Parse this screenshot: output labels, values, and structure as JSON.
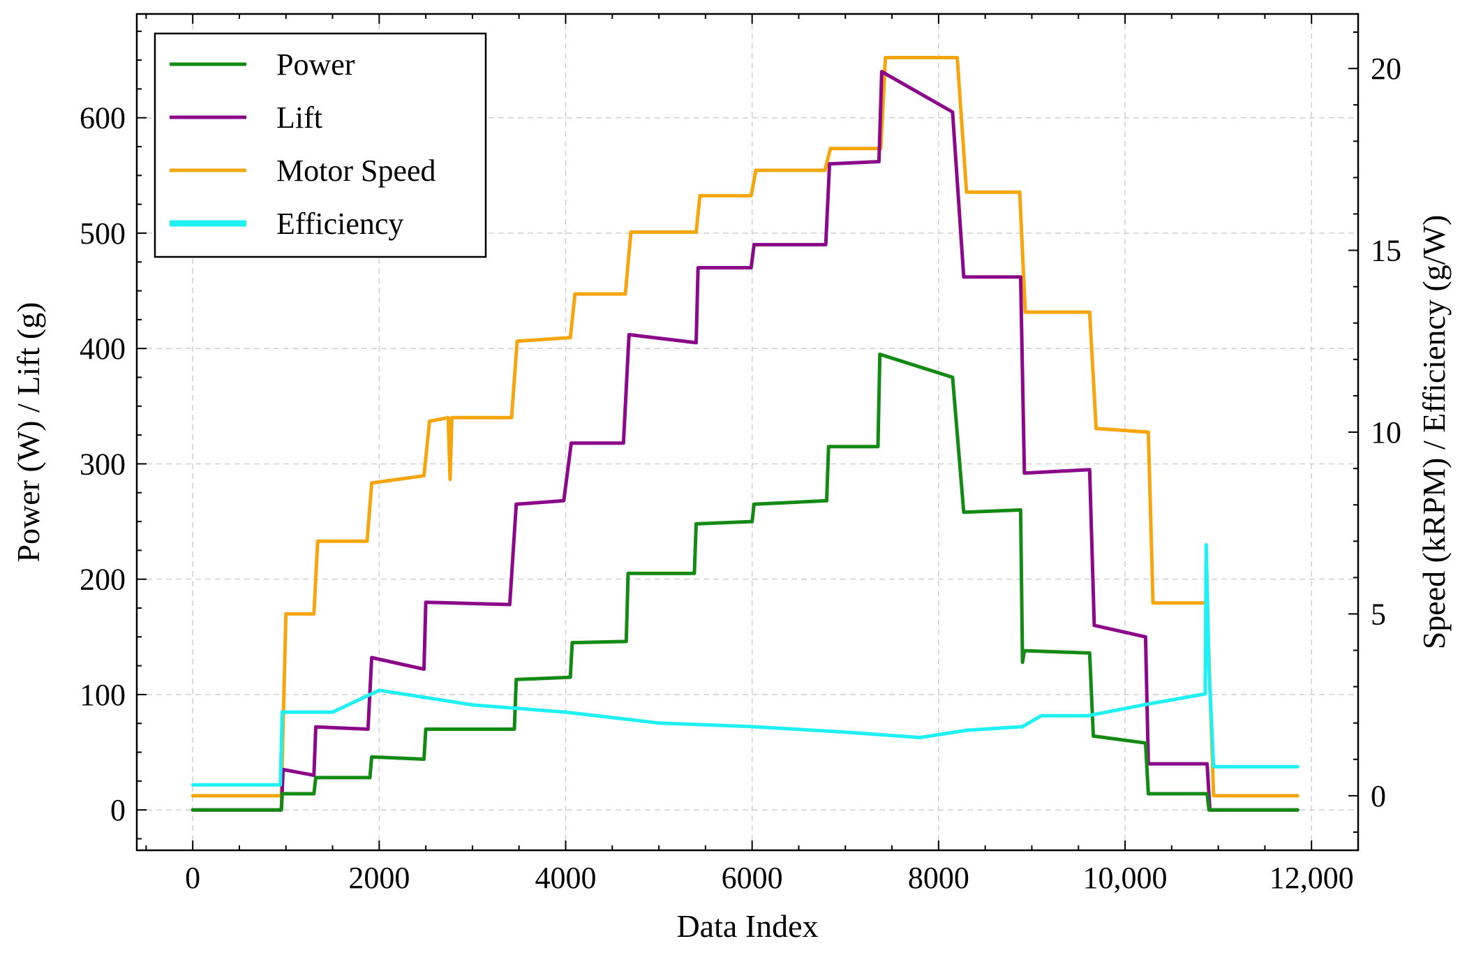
{
  "chart_data": {
    "type": "line",
    "xlabel": "Data Index",
    "ylabel_left": "Power (W) / Lift (g)",
    "ylabel_right": "Speed (kRPM) / Efficiency (g/W)",
    "x_range": [
      -600,
      12500
    ],
    "ylim_left": [
      -35,
      690
    ],
    "ylim_right": [
      -1.5,
      21.5
    ],
    "x_ticks": [
      0,
      2000,
      4000,
      6000,
      8000,
      10000,
      12000
    ],
    "x_tick_labels": [
      "0",
      "2000",
      "4000",
      "6000",
      "8000",
      "10,000",
      "12,000"
    ],
    "y_left_ticks": [
      0,
      100,
      200,
      300,
      400,
      500,
      600
    ],
    "y_left_tick_labels": [
      "0",
      "100",
      "200",
      "300",
      "400",
      "500",
      "600"
    ],
    "y_right_ticks": [
      0,
      5,
      10,
      15,
      20
    ],
    "y_right_tick_labels": [
      "0",
      "5",
      "10",
      "15",
      "20"
    ],
    "grid": true,
    "legend_position": "top-left",
    "series": [
      {
        "name": "Power",
        "axis": "left",
        "color": "#138a13",
        "points": [
          [
            0,
            0
          ],
          [
            950,
            0
          ],
          [
            960,
            14
          ],
          [
            1300,
            14
          ],
          [
            1320,
            28
          ],
          [
            1900,
            28
          ],
          [
            1920,
            46
          ],
          [
            2480,
            44
          ],
          [
            2500,
            70
          ],
          [
            3450,
            70
          ],
          [
            3470,
            113
          ],
          [
            4050,
            115
          ],
          [
            4070,
            145
          ],
          [
            4650,
            146
          ],
          [
            4670,
            205
          ],
          [
            5380,
            205
          ],
          [
            5400,
            248
          ],
          [
            6000,
            250
          ],
          [
            6020,
            265
          ],
          [
            6800,
            268
          ],
          [
            6820,
            315
          ],
          [
            7350,
            315
          ],
          [
            7370,
            395
          ],
          [
            8150,
            375
          ],
          [
            8270,
            258
          ],
          [
            8880,
            260
          ],
          [
            8900,
            128
          ],
          [
            8920,
            138
          ],
          [
            9620,
            136
          ],
          [
            9660,
            64
          ],
          [
            10220,
            58
          ],
          [
            10250,
            14
          ],
          [
            10880,
            14
          ],
          [
            10900,
            0
          ],
          [
            11850,
            0
          ]
        ]
      },
      {
        "name": "Lift",
        "axis": "left",
        "color": "#8b088b",
        "points": [
          [
            0,
            0
          ],
          [
            950,
            0
          ],
          [
            970,
            35
          ],
          [
            1300,
            30
          ],
          [
            1320,
            72
          ],
          [
            1880,
            70
          ],
          [
            1920,
            132
          ],
          [
            2480,
            122
          ],
          [
            2500,
            180
          ],
          [
            3400,
            178
          ],
          [
            3470,
            265
          ],
          [
            3980,
            268
          ],
          [
            4060,
            318
          ],
          [
            4620,
            318
          ],
          [
            4680,
            412
          ],
          [
            5400,
            405
          ],
          [
            5420,
            470
          ],
          [
            5990,
            470
          ],
          [
            6020,
            490
          ],
          [
            6790,
            490
          ],
          [
            6830,
            560
          ],
          [
            7360,
            562
          ],
          [
            7390,
            640
          ],
          [
            8150,
            605
          ],
          [
            8270,
            462
          ],
          [
            8880,
            462
          ],
          [
            8920,
            292
          ],
          [
            9620,
            295
          ],
          [
            9670,
            160
          ],
          [
            10220,
            150
          ],
          [
            10250,
            40
          ],
          [
            10880,
            40
          ],
          [
            10910,
            0
          ],
          [
            11850,
            0
          ]
        ]
      },
      {
        "name": "Motor Speed",
        "axis": "right",
        "color": "#f5a50e",
        "points": [
          [
            0,
            0
          ],
          [
            950,
            0
          ],
          [
            1000,
            5
          ],
          [
            1300,
            5
          ],
          [
            1340,
            7
          ],
          [
            1870,
            7
          ],
          [
            1920,
            8.6
          ],
          [
            2480,
            8.8
          ],
          [
            2540,
            10.3
          ],
          [
            2740,
            10.4
          ],
          [
            2760,
            8.7
          ],
          [
            2780,
            10.4
          ],
          [
            3420,
            10.4
          ],
          [
            3480,
            12.5
          ],
          [
            4050,
            12.6
          ],
          [
            4100,
            13.8
          ],
          [
            4640,
            13.8
          ],
          [
            4700,
            15.5
          ],
          [
            5400,
            15.5
          ],
          [
            5440,
            16.5
          ],
          [
            5990,
            16.5
          ],
          [
            6040,
            17.2
          ],
          [
            6780,
            17.2
          ],
          [
            6840,
            17.8
          ],
          [
            7380,
            17.8
          ],
          [
            7430,
            20.3
          ],
          [
            8200,
            20.3
          ],
          [
            8300,
            16.6
          ],
          [
            8870,
            16.6
          ],
          [
            8930,
            13.3
          ],
          [
            9620,
            13.3
          ],
          [
            9690,
            10.1
          ],
          [
            10250,
            10
          ],
          [
            10300,
            5.3
          ],
          [
            10880,
            5.3
          ],
          [
            10950,
            0
          ],
          [
            11850,
            0
          ]
        ]
      },
      {
        "name": "Efficiency",
        "axis": "right",
        "color": "#1ef0f4",
        "points": [
          [
            0,
            0.3
          ],
          [
            940,
            0.3
          ],
          [
            960,
            2.3
          ],
          [
            1500,
            2.3
          ],
          [
            2000,
            2.9
          ],
          [
            2500,
            2.7
          ],
          [
            3000,
            2.5
          ],
          [
            3500,
            2.4
          ],
          [
            4000,
            2.3
          ],
          [
            5000,
            2.0
          ],
          [
            6000,
            1.9
          ],
          [
            7000,
            1.75
          ],
          [
            7800,
            1.6
          ],
          [
            8300,
            1.8
          ],
          [
            8900,
            1.9
          ],
          [
            9100,
            2.2
          ],
          [
            9600,
            2.2
          ],
          [
            10200,
            2.5
          ],
          [
            10860,
            2.8
          ],
          [
            10870,
            6.9
          ],
          [
            10900,
            3.5
          ],
          [
            10950,
            0.8
          ],
          [
            11850,
            0.8
          ]
        ]
      }
    ]
  }
}
